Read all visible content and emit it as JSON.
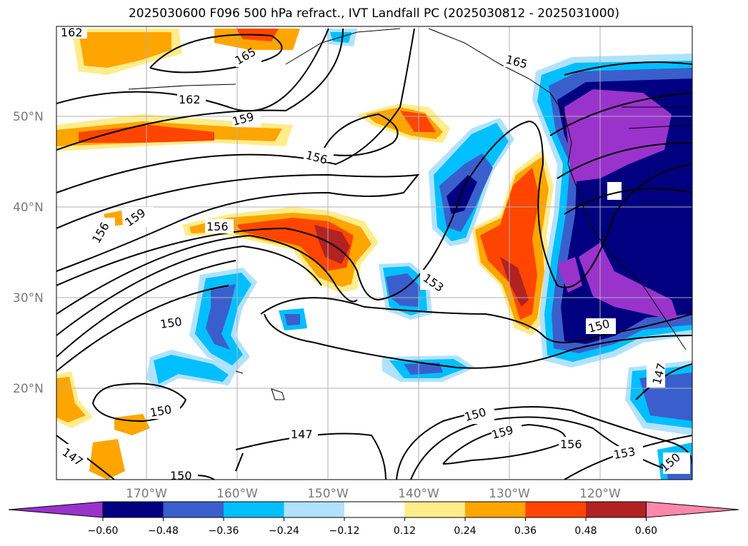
{
  "title": "2025030600 F096 500 hPa refract., IVT Landfall PC (2025030812 - 2025031000)",
  "map": {
    "type": "filled-contour-map",
    "lon_range": [
      -180,
      -110
    ],
    "lat_range": [
      10,
      60
    ],
    "lat_ticks": [
      "50°N",
      "40°N",
      "30°N",
      "20°N"
    ],
    "lon_ticks": [
      "170°W",
      "160°W",
      "150°W",
      "140°W",
      "130°W",
      "120°W"
    ],
    "grid": true
  },
  "contour_labels": [
    "162",
    "165",
    "162",
    "159",
    "156",
    "156",
    "159",
    "156",
    "165",
    "153",
    "150",
    "150",
    "150",
    "147",
    "147",
    "150",
    "159",
    "156",
    "153",
    "150",
    "150",
    "147"
  ],
  "colorbar": {
    "levels": [
      "−0.60",
      "−0.48",
      "−0.36",
      "−0.24",
      "−0.12",
      "0.12",
      "0.24",
      "0.36",
      "0.48",
      "0.60"
    ],
    "colors": [
      "#9933cc",
      "#000080",
      "#3a5fcd",
      "#00bfff",
      "#b0e2ff",
      "#ffffff",
      "#ffec8b",
      "#ffa500",
      "#ff4500",
      "#b22222",
      "#ff88aa"
    ],
    "extend": "both"
  }
}
